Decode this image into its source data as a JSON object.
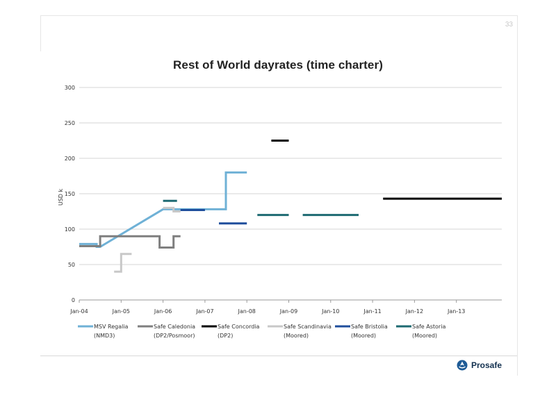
{
  "page_number": "33",
  "brand": {
    "name": "Prosafe"
  },
  "colors": {
    "msv_regalia": "#6fb1d6",
    "safe_caledonia": "#7f7f7f",
    "safe_concordia": "#000000",
    "safe_scandinavia": "#c8c8c8",
    "safe_bristolia": "#1f4e9c",
    "safe_astoria": "#1d6a72"
  },
  "chart_data": {
    "type": "line",
    "title": "Rest of World dayrates (time charter)",
    "xlabel": "",
    "ylabel": "USD k",
    "ylim": [
      0,
      300
    ],
    "yticks": [
      "0",
      "50",
      "100",
      "150",
      "200",
      "250",
      "300"
    ],
    "xlim": [
      "2004-01",
      "2014-02"
    ],
    "xticks": [
      "Jan-04",
      "Jan-05",
      "Jan-06",
      "Jan-07",
      "Jan-08",
      "Jan-09",
      "Jan-10",
      "Jan-11",
      "Jan-12",
      "Jan-13"
    ],
    "grid": true,
    "legend": "bottom",
    "series": [
      {
        "name": "MSV Regalia (NMD3)",
        "legend_lines": [
          "MSV Regalia",
          "(NMD3)"
        ],
        "color_key": "msv_regalia",
        "points": [
          [
            "2004-01",
            79
          ],
          [
            "2004-06",
            79
          ],
          [
            "2004-06",
            75
          ],
          [
            "2004-07",
            75
          ],
          [
            "2006-01",
            128
          ],
          [
            "2007-07",
            128
          ],
          [
            "2007-07",
            180
          ],
          [
            "2008-01",
            180
          ]
        ]
      },
      {
        "name": "Safe Caledonia (DP2/Posmoor)",
        "legend_lines": [
          "Safe Caledonia",
          "(DP2/Posmoor)"
        ],
        "color_key": "safe_caledonia",
        "points": [
          [
            "2004-01",
            76
          ],
          [
            "2004-07",
            76
          ],
          [
            "2004-07",
            90
          ],
          [
            "2005-12",
            90
          ],
          [
            "2005-12",
            74
          ],
          [
            "2006-04",
            74
          ],
          [
            "2006-04",
            90
          ],
          [
            "2006-06",
            90
          ]
        ]
      },
      {
        "name": "Safe Concordia (DP2)",
        "legend_lines": [
          "Safe Concordia",
          "(DP2)"
        ],
        "color_key": "safe_concordia",
        "points": [
          [
            "2008-08",
            225
          ],
          [
            "2009-01",
            225
          ],
          null,
          [
            "2011-04",
            143
          ],
          [
            "2014-02",
            143
          ]
        ]
      },
      {
        "name": "Safe Scandinavia (Moored)",
        "legend_lines": [
          "Safe Scandinavia",
          "(Moored)"
        ],
        "color_key": "safe_scandinavia",
        "points": [
          [
            "2004-11",
            40
          ],
          [
            "2005-01",
            40
          ],
          [
            "2005-01",
            65
          ],
          [
            "2005-04",
            65
          ],
          null,
          [
            "2006-01",
            130
          ],
          [
            "2006-04",
            130
          ],
          [
            "2006-04",
            125
          ],
          [
            "2006-06",
            125
          ]
        ]
      },
      {
        "name": "Safe Bristolia (Moored)",
        "legend_lines": [
          "Safe Bristolia",
          "(Moored)"
        ],
        "color_key": "safe_bristolia",
        "points": [
          [
            "2006-06",
            127
          ],
          [
            "2007-01",
            127
          ],
          null,
          [
            "2007-05",
            108
          ],
          [
            "2008-01",
            108
          ]
        ]
      },
      {
        "name": "Safe Astoria (Moored)",
        "legend_lines": [
          "Safe Astoria",
          "(Moored)"
        ],
        "color_key": "safe_astoria",
        "points": [
          [
            "2006-01",
            140
          ],
          [
            "2006-05",
            140
          ],
          null,
          [
            "2008-04",
            120
          ],
          [
            "2009-01",
            120
          ],
          null,
          [
            "2009-05",
            120
          ],
          [
            "2010-09",
            120
          ]
        ]
      }
    ]
  }
}
